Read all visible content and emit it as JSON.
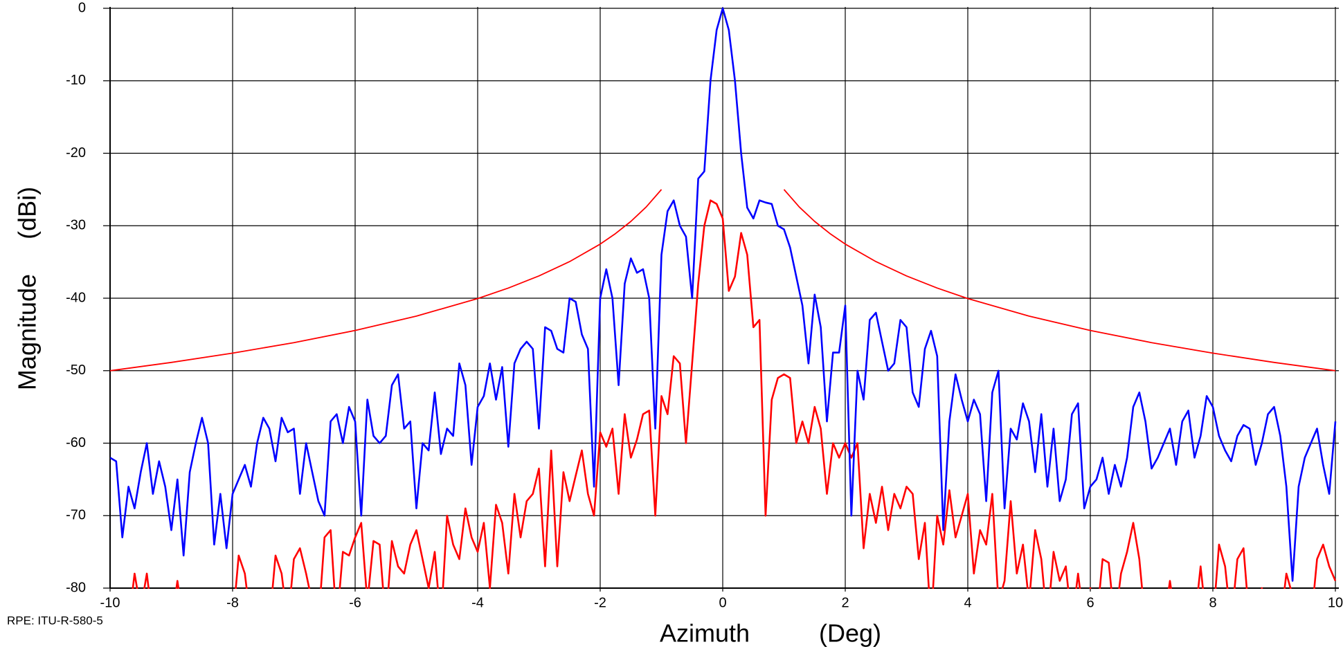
{
  "chart_data": {
    "type": "line",
    "xlabel": "Azimuth          (Deg)",
    "ylabel": "Magnitude     (dBi)",
    "xlim": [
      -10,
      10
    ],
    "xticks": [
      -10,
      -8,
      -6,
      -4,
      -2,
      0,
      2,
      4,
      6,
      8,
      10
    ],
    "ylim": [
      -80,
      0
    ],
    "yticks": [
      0,
      -10,
      -20,
      -30,
      -40,
      -50,
      -60,
      -70,
      -80
    ],
    "grid": true,
    "x": [
      -10,
      -9.9,
      -9.8,
      -9.7,
      -9.6,
      -9.5,
      -9.4,
      -9.3,
      -9.2,
      -9.1,
      -9,
      -8.9,
      -8.8,
      -8.7,
      -8.6,
      -8.5,
      -8.4,
      -8.3,
      -8.2,
      -8.1,
      -8,
      -7.9,
      -7.8,
      -7.7,
      -7.6,
      -7.5,
      -7.4,
      -7.3,
      -7.2,
      -7.1,
      -7,
      -6.9,
      -6.8,
      -6.7,
      -6.6,
      -6.5,
      -6.4,
      -6.3,
      -6.2,
      -6.1,
      -6,
      -5.9,
      -5.8,
      -5.7,
      -5.6,
      -5.5,
      -5.4,
      -5.3,
      -5.2,
      -5.1,
      -5,
      -4.9,
      -4.8,
      -4.7,
      -4.6,
      -4.5,
      -4.4,
      -4.3,
      -4.2,
      -4.1,
      -4,
      -3.9,
      -3.8,
      -3.7,
      -3.6,
      -3.5,
      -3.4,
      -3.3,
      -3.2,
      -3.1,
      -3,
      -2.9,
      -2.8,
      -2.7,
      -2.6,
      -2.5,
      -2.4,
      -2.3,
      -2.2,
      -2.1,
      -2,
      -1.9,
      -1.8,
      -1.7,
      -1.6,
      -1.5,
      -1.4,
      -1.3,
      -1.2,
      -1.1,
      -1,
      -0.9,
      -0.8,
      -0.7,
      -0.6,
      -0.5,
      -0.4,
      -0.3,
      -0.2,
      -0.1,
      0,
      0.1,
      0.2,
      0.3,
      0.4,
      0.5,
      0.6,
      0.7,
      0.8,
      0.9,
      1,
      1.1,
      1.2,
      1.3,
      1.4,
      1.5,
      1.6,
      1.7,
      1.8,
      1.9,
      2,
      2.1,
      2.2,
      2.3,
      2.4,
      2.5,
      2.6,
      2.7,
      2.8,
      2.9,
      3,
      3.1,
      3.2,
      3.3,
      3.4,
      3.5,
      3.6,
      3.7,
      3.8,
      3.9,
      4,
      4.1,
      4.2,
      4.3,
      4.4,
      4.5,
      4.6,
      4.7,
      4.8,
      4.9,
      5,
      5.1,
      5.2,
      5.3,
      5.4,
      5.5,
      5.6,
      5.7,
      5.8,
      5.9,
      6,
      6.1,
      6.2,
      6.3,
      6.4,
      6.5,
      6.6,
      6.7,
      6.8,
      6.9,
      7,
      7.1,
      7.2,
      7.3,
      7.4,
      7.5,
      7.6,
      7.7,
      7.8,
      7.9,
      8,
      8.1,
      8.2,
      8.3,
      8.4,
      8.5,
      8.6,
      8.7,
      8.8,
      8.9,
      9,
      9.1,
      9.2,
      9.3,
      9.4,
      9.5,
      9.6,
      9.7,
      9.8,
      9.9,
      10
    ],
    "series": [
      {
        "color": "#ff0000",
        "values": [
          -85,
          -85,
          -82,
          -85,
          -78,
          -83,
          -78,
          -85,
          -85,
          -82,
          -85,
          -79,
          -85,
          -85,
          -85,
          -85,
          -85,
          -85,
          -85,
          -85,
          -85,
          -75.5,
          -78,
          -85,
          -85,
          -85,
          -85,
          -75.5,
          -78,
          -85,
          -76,
          -74.5,
          -78,
          -82,
          -85,
          -73,
          -72,
          -85,
          -75,
          -75.5,
          -73,
          -71,
          -82,
          -73.5,
          -74,
          -85,
          -73.5,
          -77,
          -78,
          -74,
          -72,
          -76,
          -80,
          -75,
          -85,
          -70,
          -74,
          -76,
          -69,
          -73,
          -75,
          -71,
          -80,
          -68.5,
          -71,
          -78,
          -67,
          -73,
          -68,
          -67,
          -63.5,
          -77,
          -61,
          -77,
          -64,
          -68,
          -64.5,
          -61,
          -67,
          -70,
          -58.5,
          -60.5,
          -58,
          -67,
          -56,
          -62,
          -59.5,
          -56,
          -55.5,
          -70,
          -53.5,
          -56,
          -48,
          -49,
          -60,
          -49,
          -38,
          -30,
          -26.5,
          -27,
          -29,
          -39,
          -37,
          -31,
          -34,
          -44,
          -43,
          -70,
          -54,
          -51,
          -50.5,
          -51,
          -60,
          -57,
          -60,
          -55,
          -58,
          -67,
          -60,
          -62,
          -60,
          -62,
          -60,
          -74.5,
          -67,
          -71,
          -66,
          -72,
          -67,
          -69,
          -66,
          -67,
          -76,
          -71,
          -85,
          -70,
          -74,
          -66.5,
          -73,
          -70,
          -67,
          -78,
          -72,
          -74,
          -67,
          -82,
          -79,
          -68,
          -78,
          -74,
          -82,
          -72,
          -76,
          -85,
          -75,
          -79,
          -77,
          -85,
          -78,
          -85,
          -80,
          -85,
          -76,
          -76.5,
          -85,
          -78,
          -75,
          -71,
          -76,
          -85,
          -85,
          -85,
          -85,
          -79,
          -85,
          -85,
          -82,
          -85,
          -77,
          -85,
          -85,
          -74,
          -77,
          -85,
          -76,
          -74.5,
          -85,
          -85,
          -80,
          -85,
          -85,
          -85,
          -78,
          -81,
          -85,
          -85,
          -85,
          -76,
          -74,
          -77,
          -79
        ]
      },
      {
        "color": "#0000ff",
        "values": [
          -62,
          -62.5,
          -73,
          -66,
          -69,
          -64,
          -60,
          -67,
          -62.5,
          -66,
          -72,
          -65,
          -75.5,
          -64,
          -60,
          -56.5,
          -60,
          -74,
          -67,
          -74.5,
          -67,
          -65,
          -63,
          -66,
          -60,
          -56.5,
          -58,
          -62.5,
          -56.5,
          -58.5,
          -58,
          -67,
          -60,
          -64,
          -68,
          -70,
          -57,
          -56,
          -60,
          -55,
          -57,
          -70,
          -54,
          -59,
          -60,
          -59,
          -52,
          -50.5,
          -58,
          -57,
          -69,
          -60,
          -61,
          -53,
          -61.5,
          -58,
          -59,
          -49,
          -52,
          -63,
          -55,
          -53.5,
          -49,
          -54,
          -49.5,
          -60.5,
          -49,
          -47,
          -46,
          -47,
          -58,
          -44,
          -44.5,
          -47,
          -47.5,
          -40,
          -40.5,
          -45,
          -47,
          -66,
          -40,
          -36,
          -40,
          -52,
          -38,
          -34.5,
          -36.5,
          -36,
          -40,
          -58,
          -34,
          -28,
          -26.5,
          -30,
          -31.5,
          -40,
          -23.5,
          -22.5,
          -10,
          -3,
          0,
          -3,
          -10,
          -20,
          -27.5,
          -29,
          -26.5,
          -26.8,
          -27,
          -30,
          -30.5,
          -33,
          -37,
          -41,
          -49,
          -39.5,
          -44,
          -57,
          -47.5,
          -47.5,
          -41,
          -70,
          -50,
          -54,
          -43,
          -42,
          -46,
          -50,
          -49,
          -43,
          -44,
          -53,
          -55,
          -47,
          -44.5,
          -48,
          -72,
          -57,
          -50.5,
          -54,
          -57,
          -54,
          -56,
          -68,
          -53,
          -50,
          -69,
          -58,
          -59.5,
          -54.5,
          -57,
          -64,
          -56,
          -66,
          -58,
          -68,
          -65,
          -56,
          -54.5,
          -69,
          -66,
          -65,
          -62,
          -67,
          -63,
          -66,
          -62,
          -55,
          -53,
          -57,
          -63.5,
          -62,
          -60,
          -58,
          -63,
          -57,
          -55.5,
          -62,
          -59,
          -53.5,
          -55,
          -59,
          -61,
          -62.5,
          -59,
          -57.5,
          -58,
          -63,
          -60,
          -56,
          -55,
          -59,
          -66,
          -79,
          -66,
          -62,
          -60,
          -58,
          -63,
          -67,
          -57
        ]
      },
      {
        "name": "RPE: ITU-R-580-5",
        "color": "#ff0000",
        "x": [
          -10,
          -9,
          -8,
          -7,
          -6,
          -5,
          -4,
          -3.5,
          -3,
          -2.5,
          -2,
          -1.75,
          -1.5,
          -1.25,
          -1,
          0,
          1,
          1.25,
          1.5,
          1.75,
          2,
          2.5,
          3,
          3.5,
          4,
          5,
          6,
          7,
          8,
          9,
          10
        ],
        "values": [
          -50,
          -48.86,
          -47.58,
          -46.13,
          -44.45,
          -42.47,
          -40.05,
          -38.6,
          -36.93,
          -34.95,
          -32.53,
          -31.08,
          -29.4,
          -27.42,
          -25,
          null,
          -25,
          -27.42,
          -29.4,
          -31.08,
          -32.53,
          -34.95,
          -36.93,
          -38.6,
          -40.05,
          -42.47,
          -44.45,
          -46.13,
          -47.58,
          -48.86,
          -50
        ]
      }
    ]
  }
}
